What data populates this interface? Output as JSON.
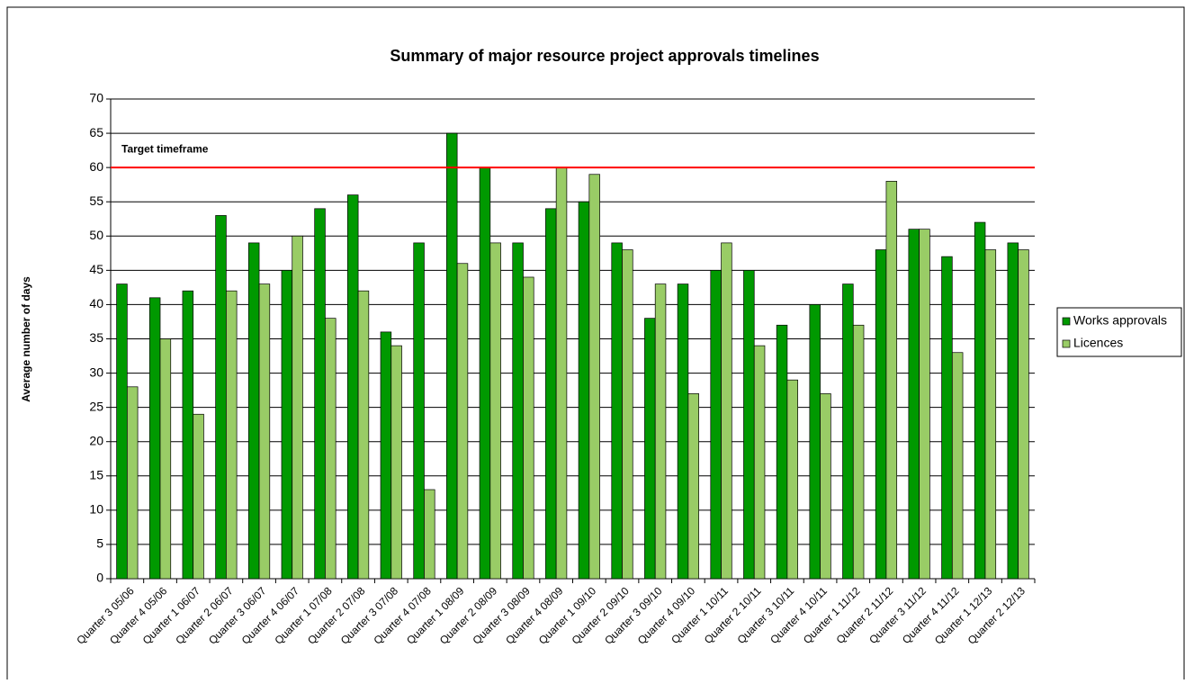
{
  "chart_data": {
    "type": "bar",
    "title": "Summary of major resource project approvals timelines",
    "y_label": "Average number of days",
    "categories": [
      "Quarter 3 05/06",
      "Quarter 4 05/06",
      "Quarter 1 06/07",
      "Quarter 2 06/07",
      "Quarter 3 06/07",
      "Quarter 4 06/07",
      "Quarter 1 07/08",
      "Quarter 2 07/08",
      "Quarter 3 07/08",
      "Quarter 4 07/08",
      "Quarter 1 08/09",
      "Quarter 2 08/09",
      "Quarter 3 08/09",
      "Quarter 4 08/09",
      "Quarter 1 09/10",
      "Quarter 2 09/10",
      "Quarter 3 09/10",
      "Quarter 4 09/10",
      "Quarter 1 10/11",
      "Quarter 2 10/11",
      "Quarter 3 10/11",
      "Quarter 4 10/11",
      "Quarter 1 11/12",
      "Quarter 2 11/12",
      "Quarter 3 11/12",
      "Quarter 4 11/12",
      "Quarter 1 12/13",
      "Quarter 2 12/13"
    ],
    "series": [
      {
        "name": "Works approvals",
        "color": "#009900",
        "values": [
          43,
          41,
          42,
          53,
          49,
          45,
          54,
          56,
          36,
          49,
          65,
          60,
          49,
          54,
          55,
          49,
          38,
          43,
          45,
          45,
          37,
          40,
          43,
          48,
          51,
          47,
          52,
          49
        ]
      },
      {
        "name": "Licences",
        "color": "#99cc66",
        "values": [
          28,
          35,
          24,
          42,
          43,
          50,
          38,
          42,
          34,
          13,
          46,
          49,
          44,
          60,
          59,
          48,
          43,
          27,
          49,
          34,
          29,
          27,
          37,
          58,
          51,
          33,
          48,
          48
        ]
      }
    ],
    "target": {
      "label": "Target timeframe",
      "value": 60,
      "color": "#ff0000"
    },
    "ylim": [
      0,
      70
    ],
    "yticks": [
      0,
      5,
      10,
      15,
      20,
      25,
      30,
      35,
      40,
      45,
      50,
      55,
      60,
      65,
      70
    ],
    "grid": true,
    "legend": "right"
  }
}
